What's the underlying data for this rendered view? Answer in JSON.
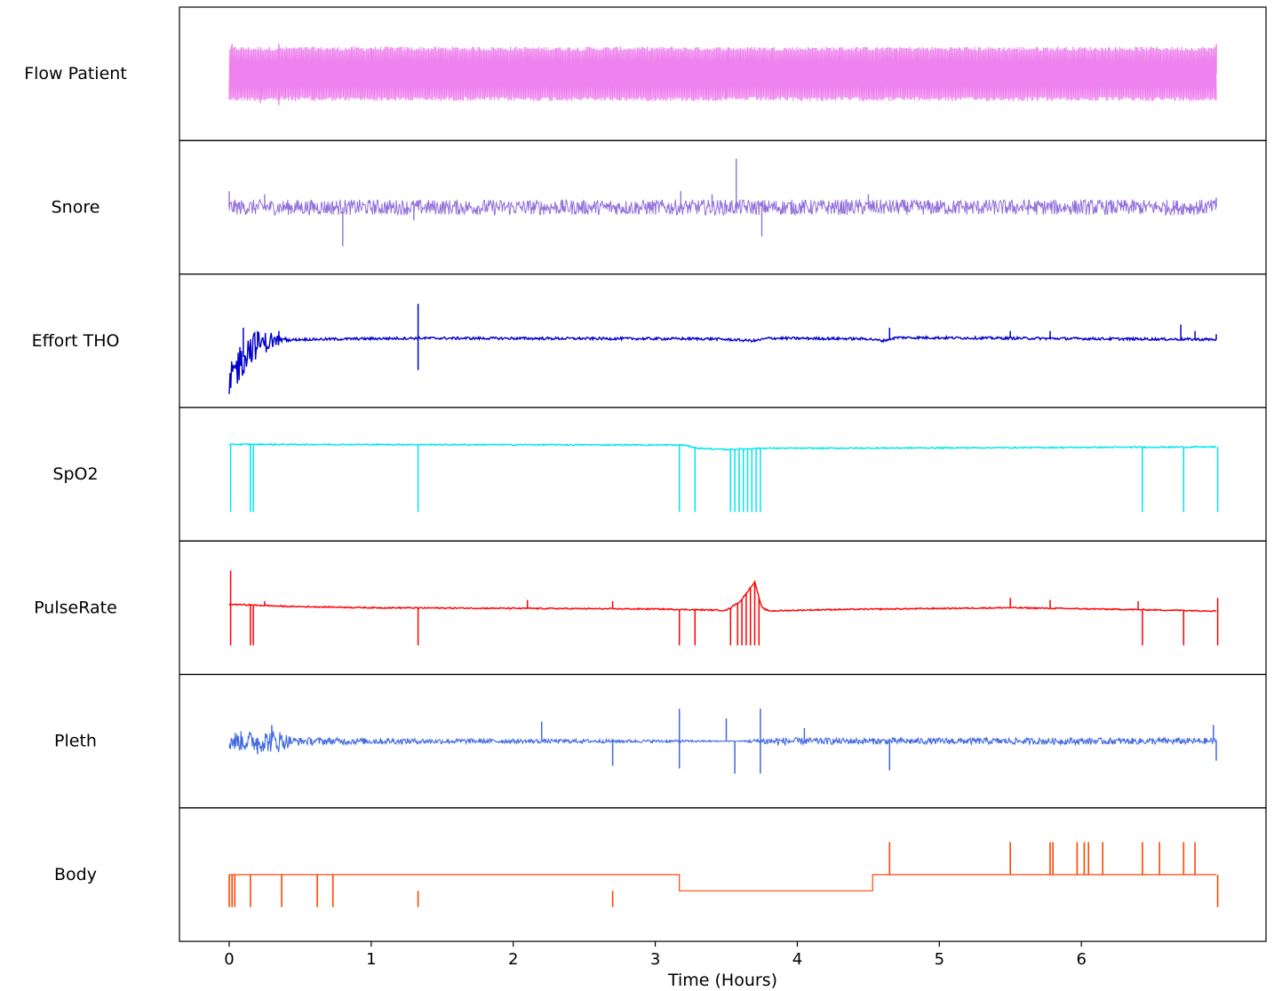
{
  "chart_data": {
    "type": "line",
    "title": "",
    "xlabel": "Time (Hours)",
    "ylabel": "",
    "xlim": [
      -0.35,
      7.3
    ],
    "x_ticks": [
      0,
      1,
      2,
      3,
      4,
      5,
      6
    ],
    "x_tick_labels": [
      "0",
      "1",
      "2",
      "3",
      "4",
      "5",
      "6"
    ],
    "signal_span_hours": [
      0,
      6.95
    ],
    "grid": false,
    "legend": "none",
    "series": [
      {
        "name": "Flow Patient",
        "color": "#ee82ee",
        "kind": "dense-oscillation",
        "amplitude": 0.42,
        "spikes": [
          [
            0.02,
            0.46
          ],
          [
            0.35,
            0.46
          ],
          [
            1.0,
            0.4
          ],
          [
            2.3,
            0.4
          ],
          [
            3.5,
            0.35
          ],
          [
            4.7,
            0.4
          ],
          [
            6.95,
            0.46
          ]
        ],
        "neg_spikes": [
          [
            0.22,
            -0.45
          ],
          [
            0.35,
            -0.48
          ],
          [
            0.6,
            -0.42
          ],
          [
            3.5,
            -0.4
          ],
          [
            4.5,
            -0.35
          ]
        ]
      },
      {
        "name": "Snore",
        "color": "#9370db",
        "kind": "noise",
        "amplitude": 0.12,
        "spikes": [
          [
            0.0,
            0.25
          ],
          [
            0.25,
            0.2
          ],
          [
            3.18,
            0.25
          ],
          [
            3.4,
            0.2
          ],
          [
            3.57,
            0.75
          ],
          [
            4.5,
            0.2
          ],
          [
            6.95,
            0.15
          ]
        ],
        "neg_spikes": [
          [
            0.8,
            -0.6
          ],
          [
            3.75,
            -0.45
          ],
          [
            1.3,
            -0.2
          ]
        ]
      },
      {
        "name": "Effort THO",
        "color": "#0000cd",
        "kind": "baseline-events",
        "baseline": [
          [
            0,
            -0.8
          ],
          [
            0.05,
            -0.4
          ],
          [
            0.15,
            -0.1
          ],
          [
            0.3,
            0.0
          ],
          [
            0.5,
            0.02
          ],
          [
            1.3,
            0.04
          ],
          [
            3.4,
            0.03
          ],
          [
            3.7,
            0.0
          ],
          [
            3.8,
            0.04
          ],
          [
            4.5,
            0.03
          ],
          [
            4.6,
            0.0
          ],
          [
            4.7,
            0.05
          ],
          [
            6.95,
            0.02
          ]
        ],
        "noise": 0.02,
        "spikes": [
          [
            1.33,
            0.57
          ],
          [
            1.33,
            -0.45
          ],
          [
            0.1,
            0.2
          ],
          [
            0.2,
            0.15
          ],
          [
            0.35,
            0.15
          ],
          [
            4.65,
            0.2
          ],
          [
            5.5,
            0.15
          ],
          [
            5.78,
            0.15
          ],
          [
            6.7,
            0.25
          ],
          [
            6.8,
            0.15
          ],
          [
            6.95,
            0.1
          ]
        ]
      },
      {
        "name": "SpO2",
        "color": "#00e5ee",
        "kind": "baseline-dropouts",
        "baseline": [
          [
            0.0,
            0.45
          ],
          [
            0.02,
            0.46
          ],
          [
            3.2,
            0.45
          ],
          [
            3.3,
            0.4
          ],
          [
            3.5,
            0.38
          ],
          [
            3.75,
            0.4
          ],
          [
            4.2,
            0.4
          ],
          [
            6.95,
            0.42
          ]
        ],
        "noise": 0.01,
        "drop_to": -0.58,
        "dropouts": [
          0.01,
          0.15,
          0.17,
          1.33,
          3.17,
          3.28,
          3.53,
          3.56,
          3.59,
          3.62,
          3.65,
          3.68,
          3.71,
          3.74,
          6.43,
          6.72,
          6.96
        ]
      },
      {
        "name": "PulseRate",
        "color": "#ff0000",
        "kind": "baseline-dropouts",
        "baseline": [
          [
            0.0,
            0.05
          ],
          [
            0.05,
            0.05
          ],
          [
            0.4,
            0.02
          ],
          [
            1.0,
            0.0
          ],
          [
            3.0,
            -0.02
          ],
          [
            3.5,
            -0.04
          ],
          [
            3.6,
            0.1
          ],
          [
            3.7,
            0.4
          ],
          [
            3.75,
            0.0
          ],
          [
            3.8,
            -0.05
          ],
          [
            4.2,
            -0.03
          ],
          [
            5.5,
            0.0
          ],
          [
            6.4,
            -0.03
          ],
          [
            6.95,
            -0.05
          ]
        ],
        "noise": 0.01,
        "drop_to": -0.58,
        "dropouts": [
          0.01,
          0.15,
          0.17,
          1.33,
          3.17,
          3.28,
          3.53,
          3.58,
          3.61,
          3.64,
          3.67,
          3.7,
          3.73,
          6.43,
          6.72,
          6.96
        ],
        "spikes": [
          [
            0.01,
            0.57
          ],
          [
            0.25,
            0.1
          ],
          [
            2.1,
            0.12
          ],
          [
            2.7,
            0.1
          ],
          [
            5.5,
            0.15
          ],
          [
            5.78,
            0.12
          ],
          [
            6.4,
            0.1
          ],
          [
            6.96,
            0.15
          ]
        ]
      },
      {
        "name": "Pleth",
        "color": "#4169e1",
        "kind": "noise-band",
        "envelope": [
          [
            0.0,
            0.15
          ],
          [
            0.35,
            0.18
          ],
          [
            0.45,
            0.06
          ],
          [
            1.5,
            0.04
          ],
          [
            2.5,
            0.03
          ],
          [
            3.15,
            0.02
          ],
          [
            3.6,
            0.005
          ],
          [
            3.78,
            0.06
          ],
          [
            4.3,
            0.05
          ],
          [
            5.5,
            0.05
          ],
          [
            6.95,
            0.05
          ]
        ],
        "spikes": [
          [
            3.17,
            0.5
          ],
          [
            3.74,
            0.5
          ],
          [
            3.5,
            0.35
          ],
          [
            2.2,
            0.3
          ],
          [
            0.3,
            0.25
          ],
          [
            6.93,
            0.25
          ],
          [
            4.05,
            0.2
          ]
        ],
        "neg_spikes": [
          [
            3.17,
            -0.42
          ],
          [
            3.56,
            -0.5
          ],
          [
            3.74,
            -0.5
          ],
          [
            2.7,
            -0.38
          ],
          [
            4.65,
            -0.45
          ],
          [
            6.95,
            -0.3
          ],
          [
            0.2,
            -0.2
          ]
        ]
      },
      {
        "name": "Body",
        "color": "#ff4500",
        "kind": "step",
        "steps": [
          [
            0,
            0
          ],
          [
            3.17,
            -0.25
          ],
          [
            4.53,
            0
          ],
          [
            6.95,
            0
          ]
        ],
        "drop_to": -0.5,
        "up_to": 0.5,
        "down_pulses": [
          0.0,
          0.02,
          0.04,
          0.15,
          0.37,
          0.62,
          0.73,
          1.33,
          2.7,
          6.96
        ],
        "up_pulses": [
          4.65,
          5.5,
          5.78,
          5.8,
          5.97,
          6.02,
          6.05,
          6.15,
          6.43,
          6.55,
          6.72,
          6.8
        ]
      }
    ]
  }
}
